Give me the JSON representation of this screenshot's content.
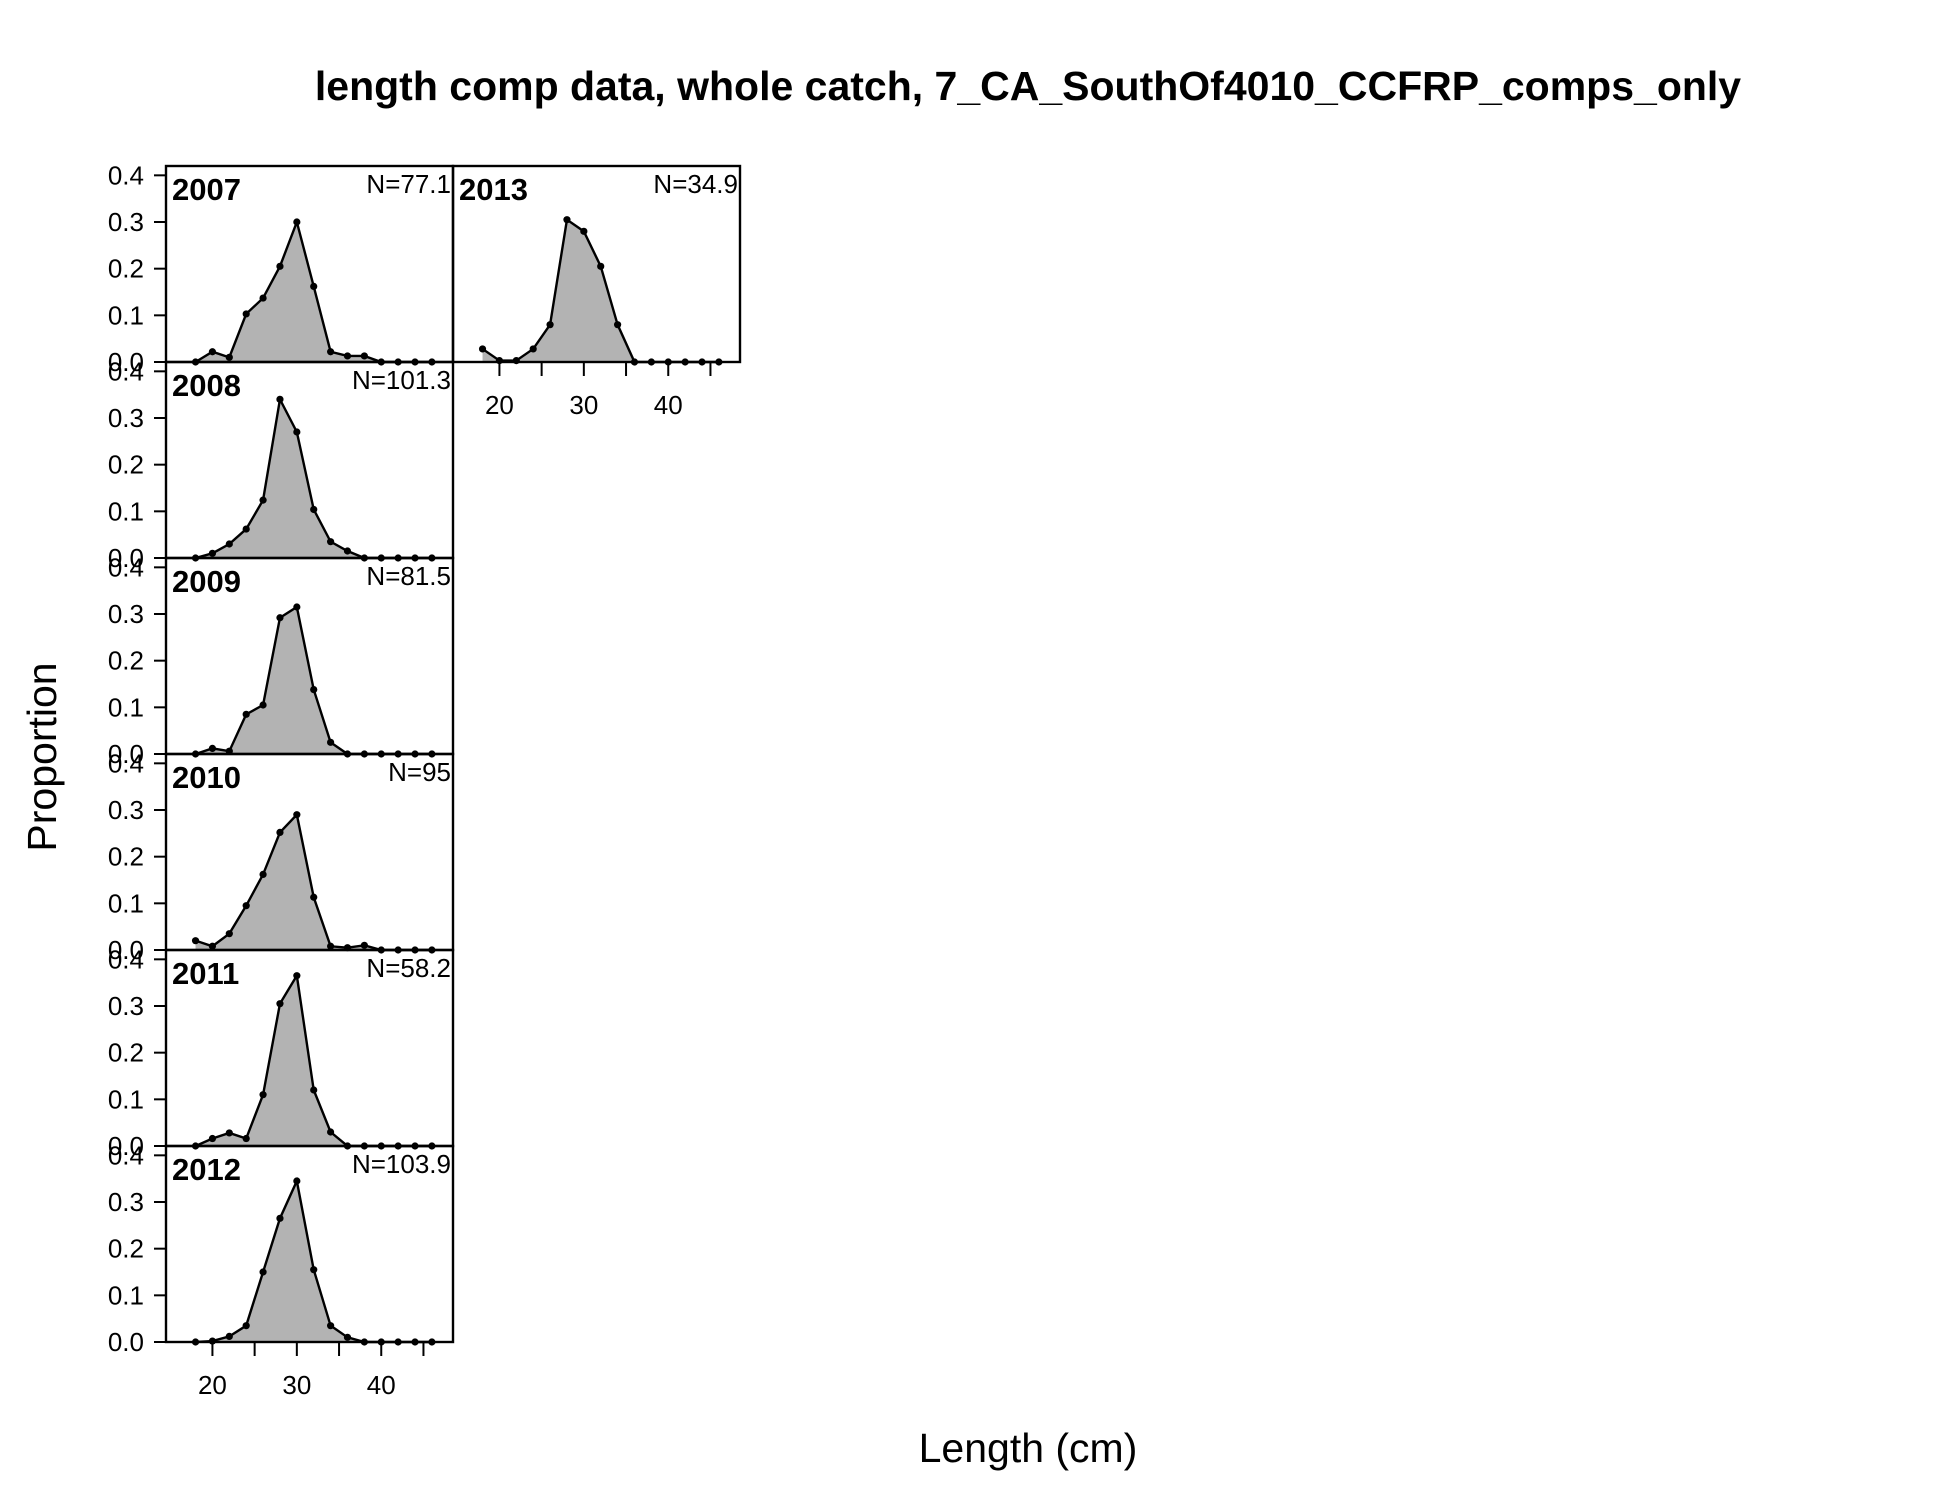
{
  "chart_data": {
    "type": "area",
    "title": "length comp data, whole catch, 7_CA_SouthOf4010_CCFRP_comps_only",
    "xlabel": "Length (cm)",
    "ylabel": "Proportion",
    "xlim": [
      14.5,
      48.5
    ],
    "ylim": [
      0,
      0.42
    ],
    "x_ticks": [
      20,
      30,
      40
    ],
    "y_ticks": [
      0.0,
      0.1,
      0.2,
      0.3,
      0.4
    ],
    "y_tick_labels": [
      "0.0",
      "0.1",
      "0.2",
      "0.3",
      "0.4"
    ],
    "fill_color": "#b3b3b3",
    "line_color": "#000000",
    "x": [
      18,
      20,
      22,
      24,
      26,
      28,
      30,
      32,
      34,
      36,
      38,
      40,
      42,
      44,
      46
    ],
    "panels": [
      {
        "year": "2007",
        "n": "N=77.1",
        "values": [
          0.0,
          0.022,
          0.01,
          0.103,
          0.137,
          0.205,
          0.3,
          0.162,
          0.022,
          0.013,
          0.013,
          0.0,
          0.0,
          0.0,
          0.0
        ]
      },
      {
        "year": "2008",
        "n": "N=101.3",
        "values": [
          0.0,
          0.01,
          0.03,
          0.062,
          0.124,
          0.34,
          0.27,
          0.104,
          0.035,
          0.015,
          0.0,
          0.0,
          0.0,
          0.0,
          0.0
        ]
      },
      {
        "year": "2009",
        "n": "N=81.5",
        "values": [
          0.0,
          0.012,
          0.006,
          0.085,
          0.105,
          0.292,
          0.315,
          0.138,
          0.025,
          0.0,
          0.0,
          0.0,
          0.0,
          0.0,
          0.0
        ]
      },
      {
        "year": "2010",
        "n": "N=95",
        "values": [
          0.02,
          0.008,
          0.035,
          0.095,
          0.162,
          0.252,
          0.29,
          0.113,
          0.008,
          0.005,
          0.01,
          0.0,
          0.0,
          0.0,
          0.0
        ]
      },
      {
        "year": "2011",
        "n": "N=58.2",
        "values": [
          0.0,
          0.016,
          0.028,
          0.016,
          0.11,
          0.305,
          0.365,
          0.12,
          0.03,
          0.0,
          0.0,
          0.0,
          0.0,
          0.0,
          0.0
        ]
      },
      {
        "year": "2012",
        "n": "N=103.9",
        "values": [
          0.0,
          0.002,
          0.012,
          0.035,
          0.15,
          0.265,
          0.345,
          0.155,
          0.035,
          0.01,
          0.0,
          0.0,
          0.0,
          0.0,
          0.0
        ]
      },
      {
        "year": "2013",
        "n": "N=34.9",
        "values": [
          0.028,
          0.003,
          0.003,
          0.028,
          0.08,
          0.305,
          0.28,
          0.205,
          0.08,
          0.0,
          0.0,
          0.0,
          0.0,
          0.0,
          0.0
        ]
      }
    ]
  }
}
